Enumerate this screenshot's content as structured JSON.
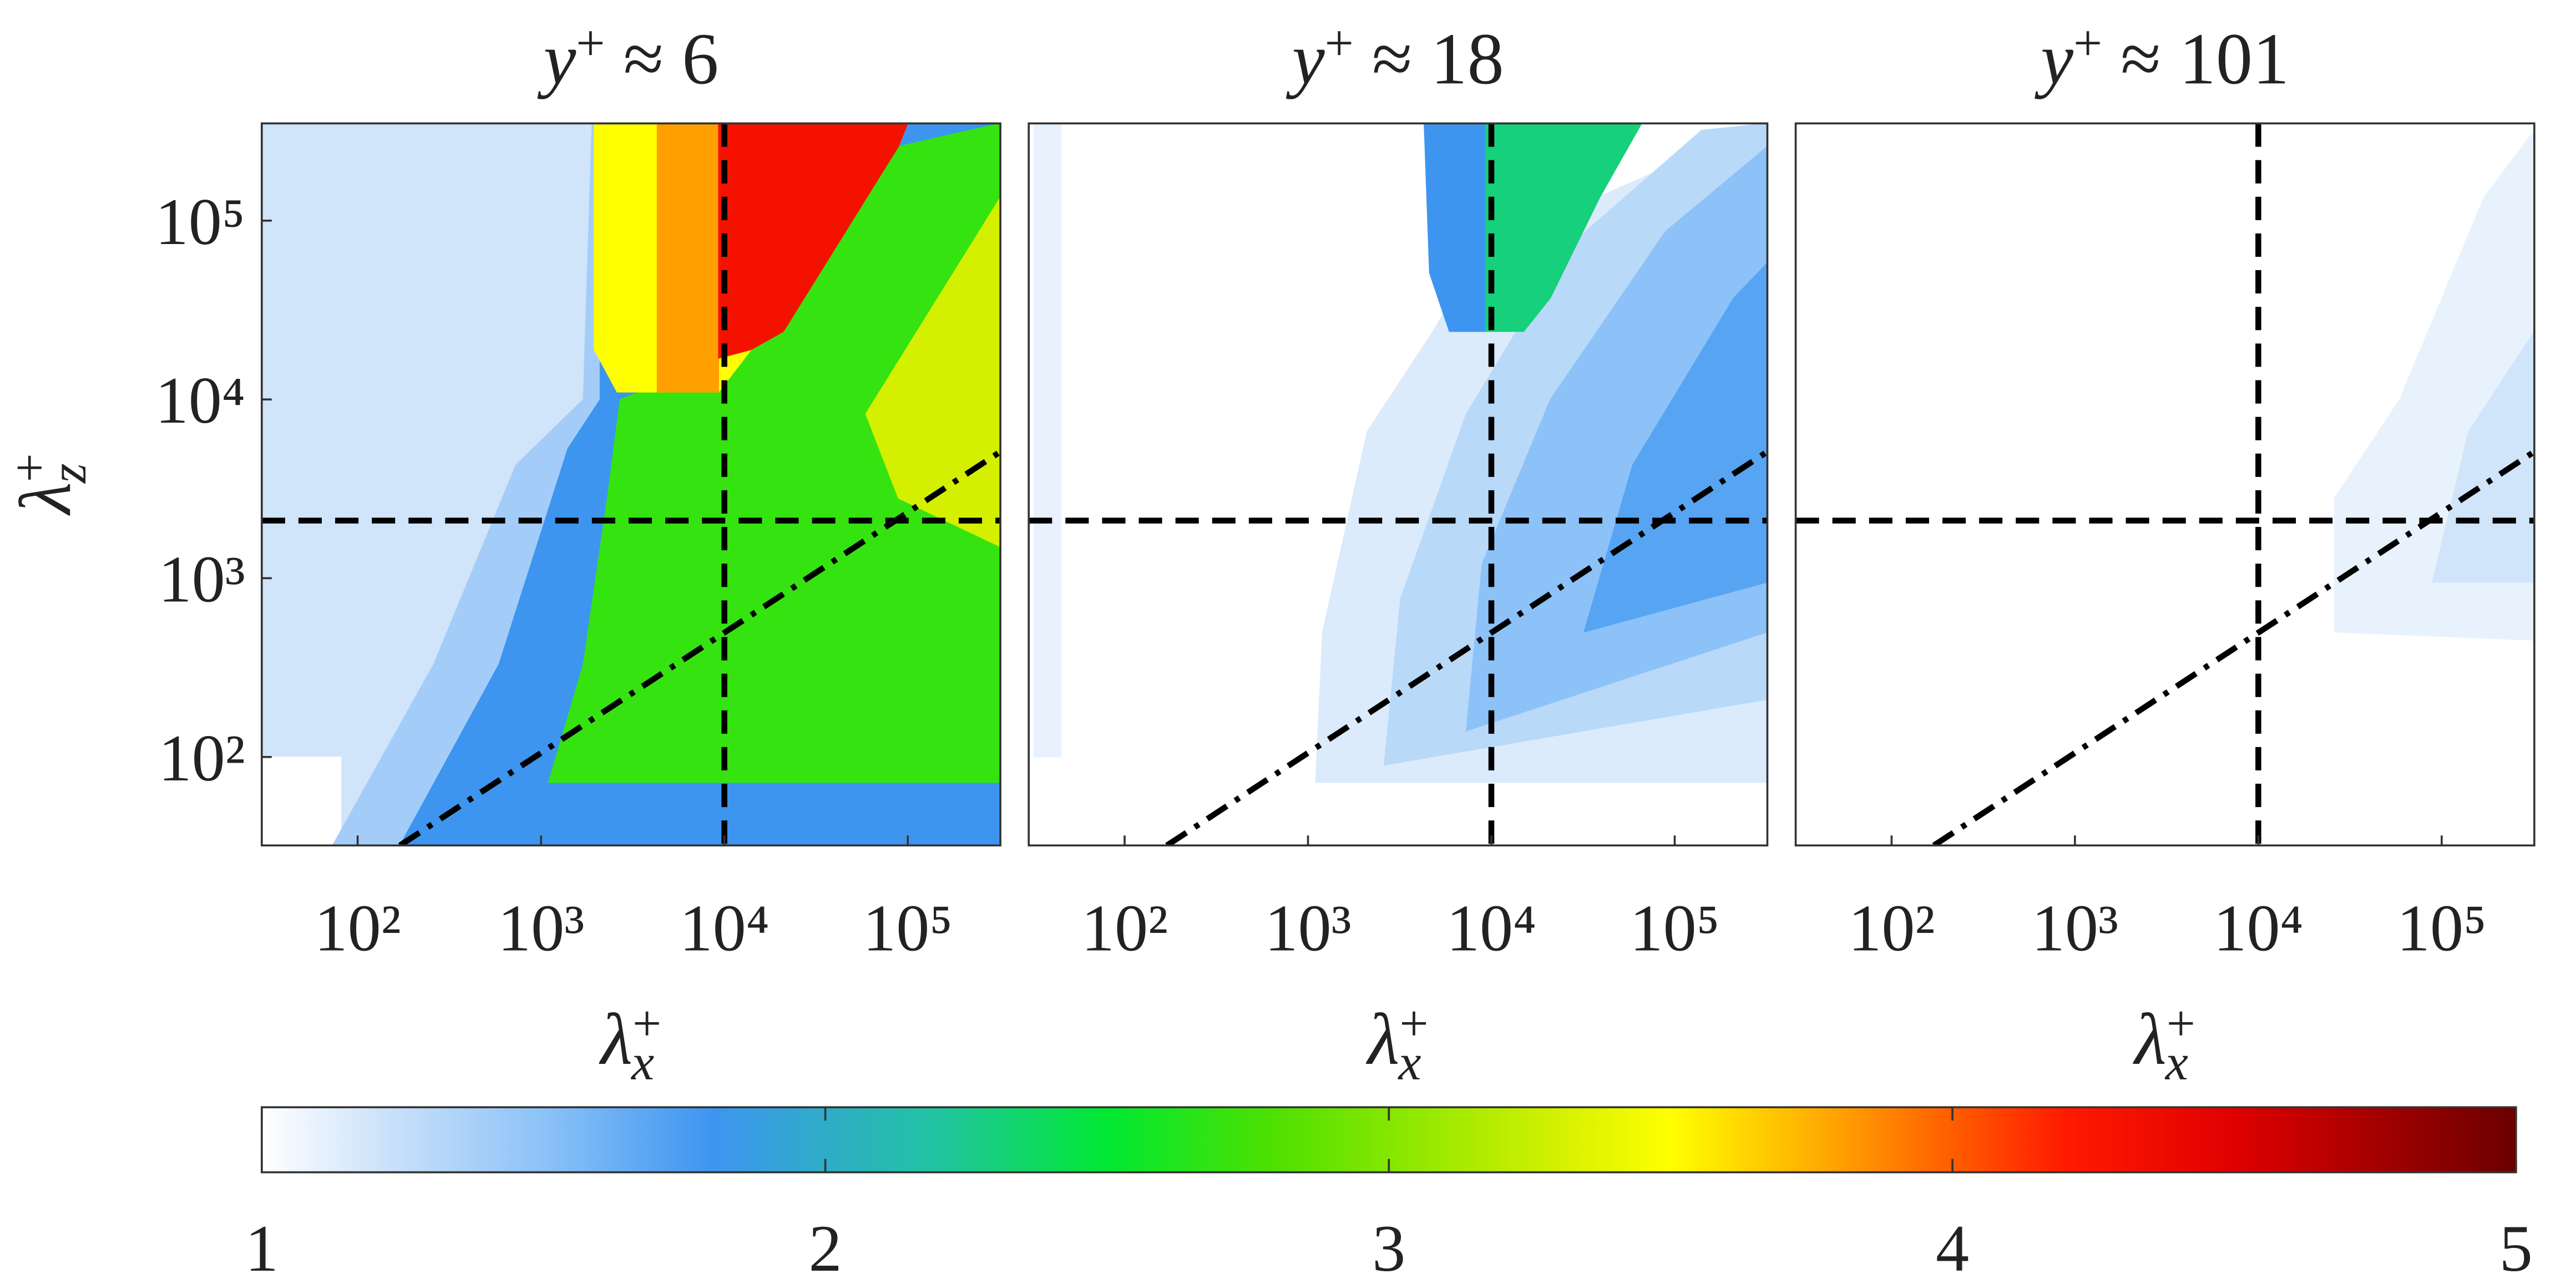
{
  "chart_data": [
    {
      "type": "contour",
      "title": {
        "symbol": "y",
        "sup": "+",
        "rest": " ≈ 6"
      },
      "xlabel": {
        "symbol": "λ",
        "sup": "+",
        "sub": "x"
      },
      "ylabel": {
        "symbol": "λ",
        "sup": "+",
        "sub": "z"
      },
      "xscale": "log",
      "yscale": "log",
      "xlim": [
        30,
        320000
      ],
      "ylim": [
        32,
        350000
      ],
      "xticks": [
        {
          "value": 100,
          "label": "10²"
        },
        {
          "value": 1000,
          "label": "10³"
        },
        {
          "value": 10000,
          "label": "10⁴"
        },
        {
          "value": 100000,
          "label": "10⁵"
        }
      ],
      "yticks": [
        {
          "value": 100,
          "label": "10²"
        },
        {
          "value": 1000,
          "label": "10³"
        },
        {
          "value": 10000,
          "label": "10⁴"
        },
        {
          "value": 100000,
          "label": "10⁵"
        }
      ],
      "vlines": [
        10000
      ],
      "hlines": [
        2100
      ],
      "dashdot": {
        "x": [
          170,
          320000
        ],
        "y": [
          32,
          5100
        ]
      },
      "regions": [
        {
          "level": 1.2,
          "points": [
            [
              30,
              32
            ],
            [
              30,
              350000
            ],
            [
              320000,
              350000
            ],
            [
              320000,
              32
            ]
          ]
        },
        {
          "level": 1.0,
          "points": [
            [
              30,
              32
            ],
            [
              30,
              100
            ],
            [
              81,
              100
            ],
            [
              81,
              32
            ]
          ]
        },
        {
          "level": 1.4,
          "points": [
            [
              73,
              32
            ],
            [
              260,
              330
            ],
            [
              730,
              4300
            ],
            [
              1700,
              10000
            ],
            [
              1900,
              350000
            ],
            [
              320000,
              350000
            ],
            [
              320000,
              32
            ]
          ]
        },
        {
          "level": 1.8,
          "points": [
            [
              170,
              32
            ],
            [
              590,
              330
            ],
            [
              1400,
              5300
            ],
            [
              2100,
              10000
            ],
            [
              2100,
              350000
            ],
            [
              320000,
              350000
            ],
            [
              320000,
              32
            ]
          ]
        },
        {
          "level": 2.7,
          "points": [
            [
              1100,
              72
            ],
            [
              1700,
              330
            ],
            [
              2300,
              2800
            ],
            [
              2700,
              10000
            ],
            [
              11000,
              17000
            ],
            [
              89000,
              260000
            ],
            [
              320000,
              350000
            ],
            [
              320000,
              72
            ]
          ]
        },
        {
          "level": 3.3,
          "points": [
            [
              59000,
              8300
            ],
            [
              320000,
              135000
            ],
            [
              320000,
              1500
            ],
            [
              89000,
              2800
            ]
          ]
        },
        {
          "level": 3.5,
          "points": [
            [
              1950,
              350000
            ],
            [
              1950,
              19000
            ],
            [
              2600,
              11000
            ],
            [
              9300,
              11000
            ],
            [
              14000,
              19000
            ],
            [
              21000,
              24000
            ],
            [
              89000,
              260000
            ],
            [
              100000,
              350000
            ]
          ]
        },
        {
          "level": 3.8,
          "points": [
            [
              4300,
              350000
            ],
            [
              4300,
              11000
            ],
            [
              9300,
              11000
            ],
            [
              9300,
              350000
            ]
          ]
        },
        {
          "level": 4.3,
          "points": [
            [
              9300,
              350000
            ],
            [
              9300,
              17000
            ],
            [
              14000,
              19000
            ],
            [
              21000,
              24000
            ],
            [
              89000,
              260000
            ],
            [
              100000,
              350000
            ]
          ]
        }
      ]
    },
    {
      "type": "contour",
      "title": {
        "symbol": "y",
        "sup": "+",
        "rest": " ≈ 18"
      },
      "xlabel": {
        "symbol": "λ",
        "sup": "+",
        "sub": "x"
      },
      "xscale": "log",
      "yscale": "log",
      "xlim": [
        30,
        320000
      ],
      "ylim": [
        32,
        350000
      ],
      "xticks": [
        {
          "value": 100,
          "label": "10²"
        },
        {
          "value": 1000,
          "label": "10³"
        },
        {
          "value": 10000,
          "label": "10⁴"
        },
        {
          "value": 100000,
          "label": "10⁵"
        }
      ],
      "vlines": [
        10000
      ],
      "hlines": [
        2100
      ],
      "dashdot": {
        "x": [
          170,
          320000
        ],
        "y": [
          32,
          5100
        ]
      },
      "regions": [
        {
          "level": 1.1,
          "points": [
            [
              32,
              100
            ],
            [
              32,
              350000
            ],
            [
              45,
              350000
            ],
            [
              45,
              100
            ]
          ]
        },
        {
          "level": 1.15,
          "points": [
            [
              1100,
              72
            ],
            [
              1200,
              500
            ],
            [
              2100,
              6600
            ],
            [
              4800,
              24000
            ],
            [
              8900,
              71000
            ],
            [
              320000,
              350000
            ],
            [
              320000,
              72
            ]
          ]
        },
        {
          "level": 1.3,
          "points": [
            [
              2600,
              90
            ],
            [
              3200,
              770
            ],
            [
              7300,
              8300
            ],
            [
              26000,
              71000
            ],
            [
              140000,
              320000
            ],
            [
              320000,
              350000
            ],
            [
              320000,
              210
            ]
          ]
        },
        {
          "level": 1.5,
          "points": [
            [
              7300,
              140
            ],
            [
              8900,
              1200
            ],
            [
              21000,
              10000
            ],
            [
              89000,
              87000
            ],
            [
              320000,
              260000
            ],
            [
              320000,
              500
            ]
          ]
        },
        {
          "level": 1.7,
          "points": [
            [
              32000,
              500
            ],
            [
              59000,
              4300
            ],
            [
              210000,
              37000
            ],
            [
              320000,
              58000
            ],
            [
              320000,
              950
            ]
          ]
        },
        {
          "level": 1.8,
          "points": [
            [
              4300,
              350000
            ],
            [
              4600,
              51000
            ],
            [
              5900,
              24000
            ],
            [
              9300,
              24000
            ],
            [
              9300,
              350000
            ]
          ]
        },
        {
          "level": 2.3,
          "points": [
            [
              9300,
              350000
            ],
            [
              9300,
              24000
            ],
            [
              15000,
              24000
            ],
            [
              21000,
              37000
            ],
            [
              39000,
              135000
            ],
            [
              66000,
              350000
            ]
          ]
        }
      ]
    },
    {
      "type": "contour",
      "title": {
        "symbol": "y",
        "sup": "+",
        "rest": " ≈ 101"
      },
      "xlabel": {
        "symbol": "λ",
        "sup": "+",
        "sub": "x"
      },
      "xscale": "log",
      "yscale": "log",
      "xlim": [
        30,
        320000
      ],
      "ylim": [
        32,
        350000
      ],
      "xticks": [
        {
          "value": 100,
          "label": "10²"
        },
        {
          "value": 1000,
          "label": "10³"
        },
        {
          "value": 10000,
          "label": "10⁴"
        },
        {
          "value": 100000,
          "label": "10⁵"
        }
      ],
      "vlines": [
        10000
      ],
      "hlines": [
        2100
      ],
      "dashdot": {
        "x": [
          170,
          320000
        ],
        "y": [
          32,
          5100
        ]
      },
      "regions": [
        {
          "level": 1.1,
          "points": [
            [
              26000,
              500
            ],
            [
              26000,
              2800
            ],
            [
              59000,
              10000
            ],
            [
              170000,
              135000
            ],
            [
              320000,
              320000
            ],
            [
              320000,
              450
            ]
          ]
        },
        {
          "level": 1.2,
          "points": [
            [
              89000,
              950
            ],
            [
              140000,
              6600
            ],
            [
              320000,
              24000
            ],
            [
              320000,
              950
            ]
          ]
        }
      ]
    },
    {
      "type": "colorbar",
      "clim": [
        1,
        5
      ],
      "ticks": [
        1,
        2,
        3,
        4,
        5
      ],
      "colormap": [
        {
          "value": 1,
          "color": "#ffffff"
        },
        {
          "value": 1.2,
          "color": "#d0e4fa"
        },
        {
          "value": 1.5,
          "color": "#8cc2f7"
        },
        {
          "value": 1.8,
          "color": "#3d95f0"
        },
        {
          "value": 2.2,
          "color": "#21c4a0"
        },
        {
          "value": 2.5,
          "color": "#00e832"
        },
        {
          "value": 2.8,
          "color": "#50e000"
        },
        {
          "value": 3.3,
          "color": "#d4f000"
        },
        {
          "value": 3.5,
          "color": "#ffff00"
        },
        {
          "value": 3.8,
          "color": "#ffa000"
        },
        {
          "value": 4.2,
          "color": "#ff1a00"
        },
        {
          "value": 4.5,
          "color": "#e00000"
        },
        {
          "value": 5,
          "color": "#6a0000"
        }
      ]
    }
  ]
}
